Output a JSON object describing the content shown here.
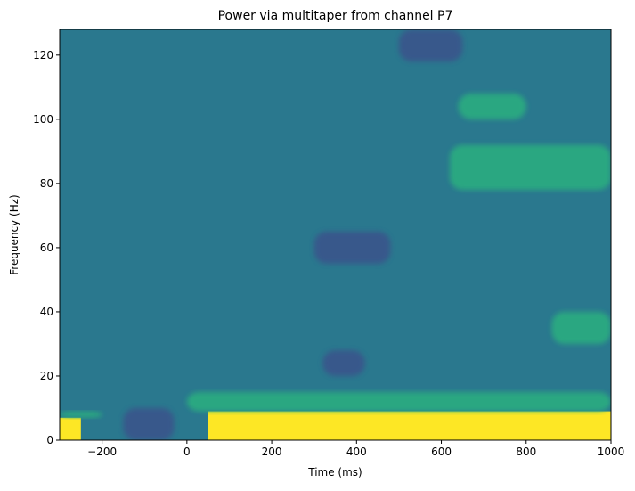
{
  "chart_data": {
    "type": "heatmap",
    "title": "Power via multitaper from channel P7",
    "xlabel": "Time (ms)",
    "ylabel": "Frequency (Hz)",
    "xlim": [
      -300,
      1000
    ],
    "ylim": [
      0,
      128
    ],
    "x_ticks": [
      -200,
      0,
      200,
      400,
      600,
      800,
      1000
    ],
    "y_ticks": [
      0,
      20,
      40,
      60,
      80,
      100,
      120
    ],
    "x_tick_labels": [
      "−200",
      "0",
      "200",
      "400",
      "600",
      "800",
      "1000"
    ],
    "y_tick_labels": [
      "0",
      "20",
      "40",
      "60",
      "80",
      "100",
      "120"
    ],
    "grid": false,
    "colormap": "viridis",
    "style": "filled-contour",
    "colors": {
      "background": "#2a788e",
      "level_low": "#3b528b",
      "level_mid": "#21918c",
      "level_high": "#2ab07f",
      "level_peak": "#fde725"
    },
    "regions": [
      {
        "level": "peak",
        "x": [
          50,
          1000
        ],
        "y": [
          0,
          9
        ],
        "description": "strong low-frequency power after stimulus"
      },
      {
        "level": "peak",
        "x": [
          -300,
          -250
        ],
        "y": [
          0,
          7
        ]
      },
      {
        "level": "high",
        "x": [
          -300,
          -200
        ],
        "y": [
          7,
          9
        ]
      },
      {
        "level": "high",
        "x": [
          0,
          1000
        ],
        "y": [
          9,
          15
        ]
      },
      {
        "level": "low",
        "x": [
          -150,
          -30
        ],
        "y": [
          0,
          10
        ],
        "description": "low power near stimulus onset"
      },
      {
        "level": "low",
        "x": [
          500,
          650
        ],
        "y": [
          118,
          128
        ]
      },
      {
        "level": "low",
        "x": [
          300,
          480
        ],
        "y": [
          55,
          65
        ]
      },
      {
        "level": "low",
        "x": [
          320,
          420
        ],
        "y": [
          20,
          28
        ]
      },
      {
        "level": "high",
        "x": [
          620,
          1000
        ],
        "y": [
          78,
          92
        ]
      },
      {
        "level": "high",
        "x": [
          640,
          800
        ],
        "y": [
          100,
          108
        ]
      },
      {
        "level": "high",
        "x": [
          860,
          1000
        ],
        "y": [
          30,
          40
        ]
      }
    ]
  }
}
